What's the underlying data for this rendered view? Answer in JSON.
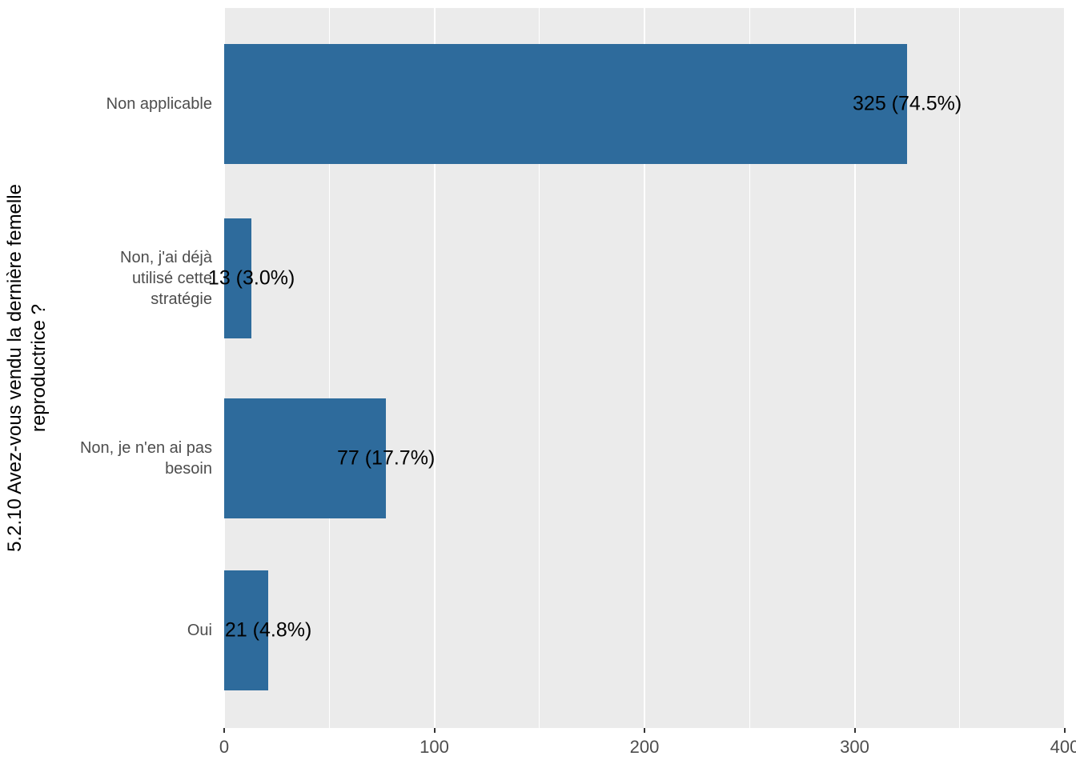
{
  "chart_data": {
    "type": "bar",
    "orientation": "horizontal",
    "title": "",
    "xlabel": "",
    "ylabel": "5.2.10 Avez-vous vendu la dernière femelle reproductrice ?",
    "ylabel_lines": [
      "5.2.10 Avez-vous vendu la dernière femelle",
      "reproductrice ?"
    ],
    "categories": [
      "Non applicable",
      "Non, j'ai déjà utilisé cette stratégie",
      "Non, je n'en ai pas besoin",
      "Oui"
    ],
    "category_display_lines": [
      [
        "Non applicable"
      ],
      [
        "Non, j'ai déjà",
        "utilisé cette",
        "stratégie"
      ],
      [
        "Non, je n'en ai pas",
        "besoin"
      ],
      [
        "Oui"
      ]
    ],
    "values": [
      325,
      13,
      77,
      21
    ],
    "percentages": [
      74.5,
      3.0,
      17.7,
      4.8
    ],
    "bar_labels": [
      "325 (74.5%)",
      "13 (3.0%)",
      "77 (17.7%)",
      "21 (4.8%)"
    ],
    "xlim": [
      0,
      400
    ],
    "xtick_values": [
      0,
      100,
      200,
      300,
      400
    ],
    "xtick_labels": [
      "0",
      "100",
      "200",
      "300",
      "400"
    ],
    "minor_gridlines": [
      50,
      150,
      250,
      350
    ],
    "grid": true,
    "legend": "none",
    "colors": {
      "bar": "#2E6B9C",
      "panel_bg": "#EBEBEB",
      "gridline": "#FFFFFF",
      "axis_text": "#4D4D4D",
      "label_text": "#000000"
    }
  }
}
